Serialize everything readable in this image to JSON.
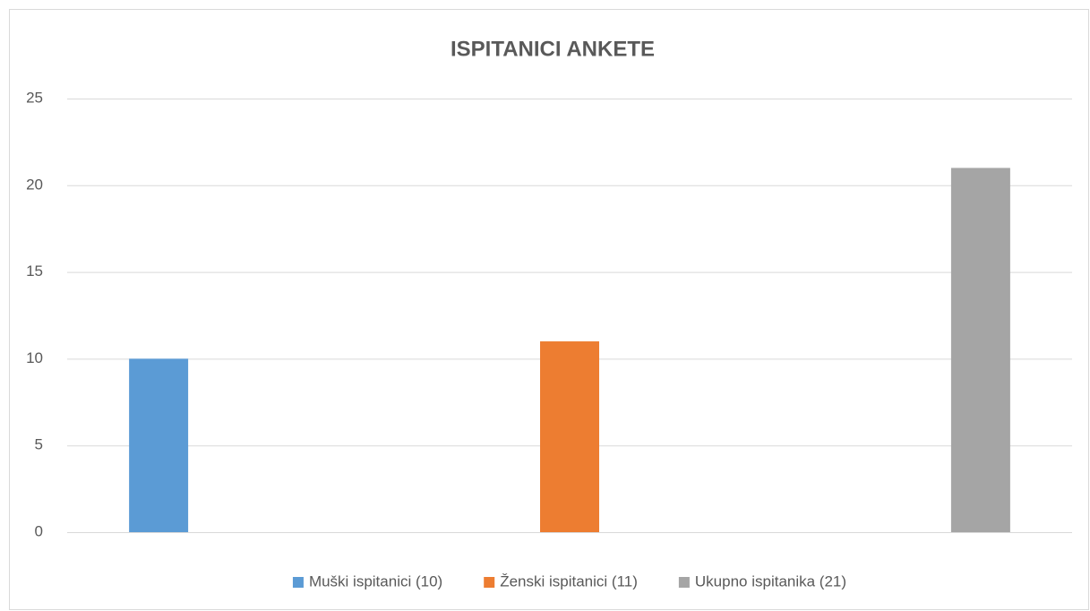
{
  "chart_data": {
    "type": "bar",
    "title": "ISPITANICI ANKETE",
    "categories": [
      null
    ],
    "series": [
      {
        "name": "Muški ispitanici (10)",
        "color": "#5b9bd5",
        "values": [
          10
        ]
      },
      {
        "name": "Ženski ispitanici (11)",
        "color": "#ed7d31",
        "values": [
          11
        ]
      },
      {
        "name": "Ukupno ispitanika (21)",
        "color": "#a5a5a5",
        "values": [
          21
        ]
      }
    ],
    "ylim": [
      0,
      25
    ],
    "yticks": [
      0,
      5,
      10,
      15,
      20,
      25
    ],
    "grid": true,
    "legend": "bottom"
  }
}
